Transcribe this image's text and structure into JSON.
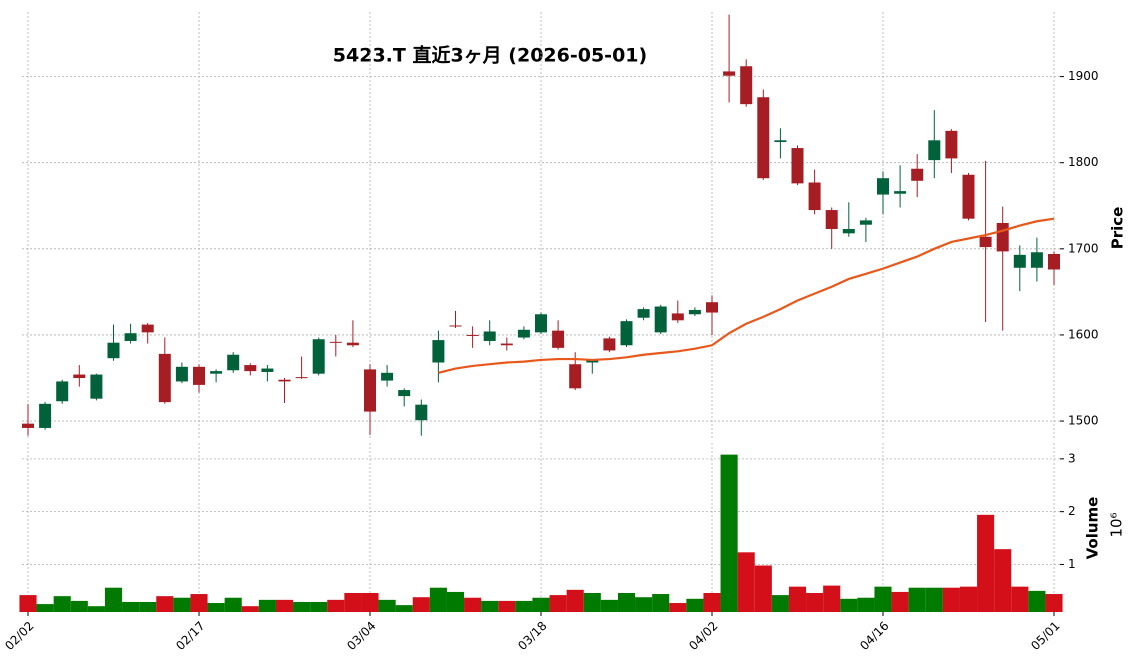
{
  "chart_data": {
    "type": "candlestick",
    "title": "5423.T  直近3ヶ月 (2026-05-01)",
    "ylabel": "Price",
    "y2label": "Volume",
    "y2_offset_label": "10⁶",
    "categories": [
      "02/02",
      null,
      null,
      null,
      null,
      null,
      null,
      null,
      null,
      null,
      "02/17",
      null,
      null,
      null,
      null,
      null,
      null,
      null,
      null,
      null,
      "03/04",
      null,
      null,
      null,
      null,
      null,
      null,
      null,
      null,
      null,
      "03/18",
      null,
      null,
      null,
      null,
      null,
      null,
      null,
      null,
      null,
      "04/02",
      null,
      null,
      null,
      null,
      null,
      null,
      null,
      null,
      null,
      "04/16",
      null,
      null,
      null,
      null,
      null,
      null,
      null,
      null,
      null,
      "05/01"
    ],
    "open": [
      1497,
      1492,
      1523,
      1554,
      1526,
      1573,
      1593,
      1612,
      1578,
      1546,
      1563,
      1555,
      1559,
      1565,
      1557,
      1548,
      1551,
      1555,
      1592,
      1591,
      1560,
      1547,
      1529,
      1501,
      1568,
      1611,
      1600,
      1593,
      1590,
      1597,
      1603,
      1605,
      1566,
      1568,
      1596,
      1588,
      1620,
      1603,
      1625,
      1624,
      1638,
      1906,
      1912,
      1876,
      1824,
      1817,
      1777,
      1745,
      1718,
      1728,
      1763,
      1764,
      1793,
      1803,
      1837,
      1786,
      1714,
      1730,
      1678,
      1678,
      1694
    ],
    "high": [
      1520,
      1522,
      1548,
      1565,
      1555,
      1612,
      1613,
      1614,
      1597,
      1568,
      1566,
      1560,
      1580,
      1567,
      1565,
      1550,
      1575,
      1597,
      1600,
      1617,
      1566,
      1565,
      1538,
      1525,
      1605,
      1628,
      1610,
      1617,
      1597,
      1610,
      1626,
      1617,
      1580,
      1572,
      1598,
      1618,
      1632,
      1635,
      1640,
      1632,
      1646,
      1972,
      1920,
      1885,
      1840,
      1820,
      1792,
      1748,
      1754,
      1736,
      1790,
      1797,
      1810,
      1861,
      1839,
      1788,
      1802,
      1749,
      1704,
      1713,
      1697
    ],
    "low": [
      1483,
      1490,
      1520,
      1540,
      1524,
      1570,
      1590,
      1590,
      1520,
      1544,
      1533,
      1545,
      1556,
      1553,
      1546,
      1521,
      1549,
      1553,
      1575,
      1586,
      1484,
      1540,
      1517,
      1483,
      1545,
      1608,
      1585,
      1588,
      1582,
      1595,
      1601,
      1583,
      1536,
      1555,
      1580,
      1586,
      1617,
      1601,
      1614,
      1622,
      1600,
      1870,
      1865,
      1780,
      1805,
      1774,
      1740,
      1700,
      1714,
      1708,
      1740,
      1748,
      1760,
      1782,
      1788,
      1733,
      1615,
      1605,
      1651,
      1662,
      1658
    ],
    "close": [
      1492,
      1520,
      1546,
      1550,
      1554,
      1591,
      1602,
      1603,
      1522,
      1563,
      1542,
      1558,
      1577,
      1558,
      1561,
      1546,
      1550,
      1595,
      1591,
      1588,
      1511,
      1556,
      1536,
      1519,
      1594,
      1610,
      1599,
      1604,
      1588,
      1606,
      1624,
      1585,
      1538,
      1571,
      1582,
      1616,
      1630,
      1633,
      1617,
      1629,
      1626,
      1901,
      1868,
      1782,
      1826,
      1776,
      1745,
      1723,
      1723,
      1733,
      1782,
      1767,
      1779,
      1826,
      1805,
      1735,
      1702,
      1697,
      1693,
      1696,
      1676
    ],
    "up_color": "#00613a",
    "down_color": "#a61d24",
    "ma": {
      "color": "#e8581a",
      "values": [
        null,
        null,
        null,
        null,
        null,
        null,
        null,
        null,
        null,
        null,
        null,
        null,
        null,
        null,
        null,
        null,
        null,
        null,
        null,
        null,
        null,
        null,
        null,
        null,
        1556,
        1561,
        1564,
        1566,
        1568,
        1569,
        1571,
        1572,
        1572,
        1571,
        1572,
        1574,
        1577,
        1579,
        1581,
        1584,
        1588,
        1602,
        1613,
        1621,
        1630,
        1640,
        1648,
        1656,
        1665,
        1671,
        1677,
        1684,
        1691,
        1700,
        1708,
        1712,
        1716,
        1721,
        1727,
        1732,
        1735
      ]
    },
    "volume": [
      0.42,
      0.25,
      0.4,
      0.31,
      0.21,
      0.56,
      0.29,
      0.29,
      0.4,
      0.37,
      0.44,
      0.27,
      0.37,
      0.21,
      0.33,
      0.33,
      0.29,
      0.29,
      0.33,
      0.46,
      0.46,
      0.33,
      0.23,
      0.38,
      0.56,
      0.48,
      0.37,
      0.31,
      0.31,
      0.31,
      0.37,
      0.42,
      0.52,
      0.46,
      0.33,
      0.46,
      0.38,
      0.44,
      0.27,
      0.35,
      0.46,
      3.08,
      1.23,
      0.98,
      0.42,
      0.58,
      0.46,
      0.6,
      0.35,
      0.37,
      0.58,
      0.48,
      0.56,
      0.56,
      0.56,
      0.58,
      1.94,
      1.29,
      0.58,
      0.5,
      0.44
    ],
    "volume_colors": [
      "#d30f1a",
      "#007a00",
      "#007a00",
      "#007a00",
      "#007a00",
      "#007a00",
      "#007a00",
      "#007a00",
      "#d30f1a",
      "#007a00",
      "#d30f1a",
      "#007a00",
      "#007a00",
      "#d30f1a",
      "#007a00",
      "#d30f1a",
      "#007a00",
      "#007a00",
      "#d30f1a",
      "#d30f1a",
      "#d30f1a",
      "#007a00",
      "#007a00",
      "#d30f1a",
      "#007a00",
      "#007a00",
      "#d30f1a",
      "#007a00",
      "#d30f1a",
      "#007a00",
      "#007a00",
      "#d30f1a",
      "#d30f1a",
      "#007a00",
      "#007a00",
      "#007a00",
      "#007a00",
      "#007a00",
      "#d30f1a",
      "#007a00",
      "#d30f1a",
      "#007a00",
      "#d30f1a",
      "#d30f1a",
      "#007a00",
      "#d30f1a",
      "#d30f1a",
      "#d30f1a",
      "#007a00",
      "#007a00",
      "#007a00",
      "#d30f1a",
      "#007a00",
      "#007a00",
      "#d30f1a",
      "#d30f1a",
      "#d30f1a",
      "#d30f1a",
      "#d30f1a",
      "#007a00",
      "#d30f1a"
    ],
    "ylim": [
      1478,
      1975
    ],
    "yticks": [
      1500,
      1600,
      1700,
      1800,
      1900
    ],
    "y2lim": [
      0.1,
      3.3
    ],
    "y2ticks": [
      1,
      2,
      3
    ],
    "grid": true
  }
}
